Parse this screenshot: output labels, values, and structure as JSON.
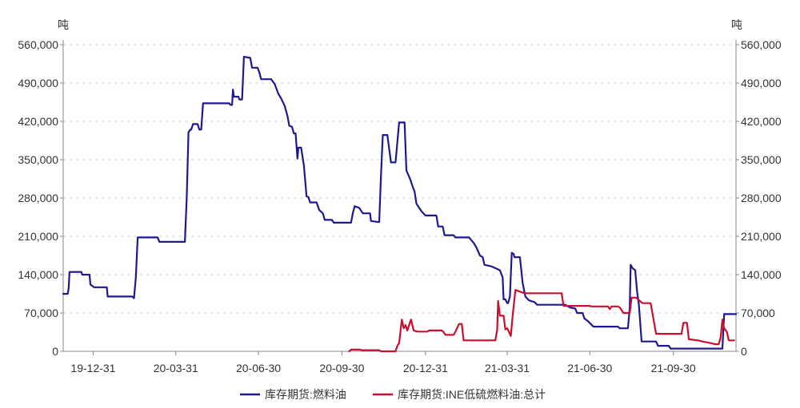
{
  "chart_data": {
    "type": "line",
    "y_unit_left": "吨",
    "y_unit_right": "吨",
    "ylim": [
      0,
      560000
    ],
    "y_ticks": [
      0,
      70000,
      140000,
      210000,
      280000,
      350000,
      420000,
      490000,
      560000
    ],
    "y_tick_labels": [
      "0",
      "70,000",
      "140,000",
      "210,000",
      "280,000",
      "350,000",
      "420,000",
      "490,000",
      "560,000"
    ],
    "xlim": [
      "2019-11-28",
      "2021-12-08"
    ],
    "x_ticks": [
      "2019-12-31",
      "2020-03-31",
      "2020-06-30",
      "2020-09-30",
      "2020-12-31",
      "2021-03-31",
      "2021-06-30",
      "2021-09-30"
    ],
    "x_tick_labels": [
      "19-12-31",
      "20-03-31",
      "20-06-30",
      "20-09-30",
      "20-12-31",
      "21-03-31",
      "21-06-30",
      "21-09-30"
    ],
    "grid": true,
    "legend_position": "bottom",
    "series": [
      {
        "name": "库存期货:燃料油",
        "color": "#1f1a8c",
        "points": [
          [
            "2019-11-28",
            105000
          ],
          [
            "2019-12-03",
            105000
          ],
          [
            "2019-12-04",
            115000
          ],
          [
            "2019-12-05",
            145000
          ],
          [
            "2019-12-18",
            145000
          ],
          [
            "2019-12-19",
            140000
          ],
          [
            "2019-12-27",
            140000
          ],
          [
            "2019-12-28",
            122000
          ],
          [
            "2020-01-01",
            117000
          ],
          [
            "2020-01-15",
            117000
          ],
          [
            "2020-01-16",
            100000
          ],
          [
            "2020-02-12",
            100000
          ],
          [
            "2020-02-14",
            97000
          ],
          [
            "2020-02-16",
            135000
          ],
          [
            "2020-02-18",
            208000
          ],
          [
            "2020-03-11",
            208000
          ],
          [
            "2020-03-13",
            200000
          ],
          [
            "2020-04-10",
            200000
          ],
          [
            "2020-04-12",
            280000
          ],
          [
            "2020-04-14",
            400000
          ],
          [
            "2020-04-16",
            405000
          ],
          [
            "2020-04-17",
            405000
          ],
          [
            "2020-04-19",
            415000
          ],
          [
            "2020-04-24",
            415000
          ],
          [
            "2020-04-26",
            405000
          ],
          [
            "2020-04-28",
            405000
          ],
          [
            "2020-04-30",
            453000
          ],
          [
            "2020-05-29",
            453000
          ],
          [
            "2020-05-30",
            450000
          ],
          [
            "2020-06-01",
            450000
          ],
          [
            "2020-06-02",
            478000
          ],
          [
            "2020-06-03",
            465000
          ],
          [
            "2020-06-08",
            465000
          ],
          [
            "2020-06-09",
            460000
          ],
          [
            "2020-06-12",
            460000
          ],
          [
            "2020-06-14",
            538000
          ],
          [
            "2020-06-21",
            536000
          ],
          [
            "2020-06-23",
            518000
          ],
          [
            "2020-06-29",
            518000
          ],
          [
            "2020-07-01",
            510000
          ],
          [
            "2020-07-03",
            497000
          ],
          [
            "2020-07-14",
            497000
          ],
          [
            "2020-07-18",
            488000
          ],
          [
            "2020-07-22",
            470000
          ],
          [
            "2020-07-25",
            462000
          ],
          [
            "2020-07-29",
            448000
          ],
          [
            "2020-08-01",
            430000
          ],
          [
            "2020-08-03",
            412000
          ],
          [
            "2020-08-06",
            410000
          ],
          [
            "2020-08-08",
            398000
          ],
          [
            "2020-08-10",
            398000
          ],
          [
            "2020-08-12",
            352000
          ],
          [
            "2020-08-13",
            372000
          ],
          [
            "2020-08-16",
            372000
          ],
          [
            "2020-08-19",
            340000
          ],
          [
            "2020-08-22",
            283000
          ],
          [
            "2020-08-24",
            282000
          ],
          [
            "2020-08-26",
            272000
          ],
          [
            "2020-09-02",
            272000
          ],
          [
            "2020-09-05",
            258000
          ],
          [
            "2020-09-09",
            252000
          ],
          [
            "2020-09-11",
            240000
          ],
          [
            "2020-09-19",
            240000
          ],
          [
            "2020-09-21",
            235000
          ],
          [
            "2020-10-10",
            235000
          ],
          [
            "2020-10-12",
            252000
          ],
          [
            "2020-10-14",
            265000
          ],
          [
            "2020-10-19",
            262000
          ],
          [
            "2020-10-23",
            252000
          ],
          [
            "2020-10-31",
            252000
          ],
          [
            "2020-11-01",
            238000
          ],
          [
            "2020-11-10",
            236000
          ],
          [
            "2020-11-12",
            320000
          ],
          [
            "2020-11-14",
            395000
          ],
          [
            "2020-11-19",
            395000
          ],
          [
            "2020-11-23",
            345000
          ],
          [
            "2020-11-28",
            345000
          ],
          [
            "2020-12-02",
            418000
          ],
          [
            "2020-12-08",
            418000
          ],
          [
            "2020-12-10",
            330000
          ],
          [
            "2020-12-14",
            315000
          ],
          [
            "2020-12-17",
            300000
          ],
          [
            "2020-12-19",
            292000
          ],
          [
            "2020-12-21",
            270000
          ],
          [
            "2020-12-24",
            262000
          ],
          [
            "2020-12-27",
            255000
          ],
          [
            "2020-12-31",
            248000
          ],
          [
            "2021-01-12",
            248000
          ],
          [
            "2021-01-14",
            228000
          ],
          [
            "2021-01-19",
            228000
          ],
          [
            "2021-01-21",
            212000
          ],
          [
            "2021-01-31",
            212000
          ],
          [
            "2021-02-02",
            208000
          ],
          [
            "2021-02-17",
            208000
          ],
          [
            "2021-02-22",
            198000
          ],
          [
            "2021-02-25",
            190000
          ],
          [
            "2021-03-01",
            175000
          ],
          [
            "2021-03-04",
            172000
          ],
          [
            "2021-03-06",
            158000
          ],
          [
            "2021-03-14",
            155000
          ],
          [
            "2021-03-23",
            148000
          ],
          [
            "2021-03-26",
            135000
          ],
          [
            "2021-03-27",
            95000
          ],
          [
            "2021-03-29",
            95000
          ],
          [
            "2021-03-31",
            88000
          ],
          [
            "2021-04-01",
            88000
          ],
          [
            "2021-04-03",
            100000
          ],
          [
            "2021-04-05",
            180000
          ],
          [
            "2021-04-07",
            178000
          ],
          [
            "2021-04-08",
            172000
          ],
          [
            "2021-04-14",
            172000
          ],
          [
            "2021-04-17",
            125000
          ],
          [
            "2021-04-20",
            100000
          ],
          [
            "2021-04-24",
            93000
          ],
          [
            "2021-04-30",
            90000
          ],
          [
            "2021-05-03",
            85000
          ],
          [
            "2021-05-31",
            85000
          ],
          [
            "2021-06-03",
            85000
          ],
          [
            "2021-06-08",
            80000
          ],
          [
            "2021-06-14",
            78000
          ],
          [
            "2021-06-16",
            70000
          ],
          [
            "2021-06-22",
            70000
          ],
          [
            "2021-06-24",
            60000
          ],
          [
            "2021-06-28",
            55000
          ],
          [
            "2021-07-01",
            50000
          ],
          [
            "2021-07-04",
            45000
          ],
          [
            "2021-07-31",
            45000
          ],
          [
            "2021-08-02",
            42000
          ],
          [
            "2021-08-11",
            42000
          ],
          [
            "2021-08-13",
            80000
          ],
          [
            "2021-08-14",
            158000
          ],
          [
            "2021-08-16",
            152000
          ],
          [
            "2021-08-19",
            148000
          ],
          [
            "2021-08-21",
            110000
          ],
          [
            "2021-08-23",
            85000
          ],
          [
            "2021-08-26",
            18000
          ],
          [
            "2021-09-11",
            18000
          ],
          [
            "2021-09-13",
            10000
          ],
          [
            "2021-09-25",
            10000
          ],
          [
            "2021-09-27",
            5000
          ],
          [
            "2021-11-23",
            5000
          ],
          [
            "2021-11-25",
            68000
          ],
          [
            "2021-12-08",
            68000
          ]
        ]
      },
      {
        "name": "库存期货:INE低硫燃料油:总计",
        "color": "#c8102e",
        "points": [
          [
            "2020-10-08",
            0
          ],
          [
            "2020-10-10",
            3000
          ],
          [
            "2020-10-20",
            3000
          ],
          [
            "2020-10-22",
            2000
          ],
          [
            "2020-11-10",
            2000
          ],
          [
            "2020-11-12",
            0
          ],
          [
            "2020-11-28",
            0
          ],
          [
            "2020-11-30",
            10000
          ],
          [
            "2020-12-02",
            15000
          ],
          [
            "2020-12-05",
            58000
          ],
          [
            "2020-12-07",
            42000
          ],
          [
            "2020-12-09",
            48000
          ],
          [
            "2020-12-11",
            38000
          ],
          [
            "2020-12-15",
            58000
          ],
          [
            "2020-12-18",
            38000
          ],
          [
            "2020-12-22",
            36000
          ],
          [
            "2021-01-02",
            36000
          ],
          [
            "2021-01-04",
            38000
          ],
          [
            "2021-01-18",
            38000
          ],
          [
            "2021-01-20",
            35000
          ],
          [
            "2021-01-22",
            30000
          ],
          [
            "2021-01-27",
            30000
          ],
          [
            "2021-01-31",
            30000
          ],
          [
            "2021-02-02",
            36000
          ],
          [
            "2021-02-06",
            50000
          ],
          [
            "2021-02-09",
            50000
          ],
          [
            "2021-02-11",
            20000
          ],
          [
            "2021-03-18",
            20000
          ],
          [
            "2021-03-20",
            40000
          ],
          [
            "2021-03-21",
            92000
          ],
          [
            "2021-03-23",
            65000
          ],
          [
            "2021-03-27",
            65000
          ],
          [
            "2021-03-29",
            40000
          ],
          [
            "2021-03-31",
            42000
          ],
          [
            "2021-04-04",
            28000
          ],
          [
            "2021-04-06",
            65000
          ],
          [
            "2021-04-09",
            112000
          ],
          [
            "2021-04-19",
            106000
          ],
          [
            "2021-05-30",
            106000
          ],
          [
            "2021-06-01",
            83000
          ],
          [
            "2021-06-30",
            83000
          ],
          [
            "2021-07-02",
            82000
          ],
          [
            "2021-07-20",
            82000
          ],
          [
            "2021-07-22",
            77000
          ],
          [
            "2021-07-24",
            82000
          ],
          [
            "2021-07-31",
            82000
          ],
          [
            "2021-08-02",
            80000
          ],
          [
            "2021-08-06",
            70000
          ],
          [
            "2021-08-13",
            70000
          ],
          [
            "2021-08-15",
            98000
          ],
          [
            "2021-08-20",
            98000
          ],
          [
            "2021-08-24",
            92000
          ],
          [
            "2021-08-27",
            88000
          ],
          [
            "2021-09-05",
            88000
          ],
          [
            "2021-09-08",
            60000
          ],
          [
            "2021-09-11",
            32000
          ],
          [
            "2021-10-09",
            32000
          ],
          [
            "2021-10-11",
            52000
          ],
          [
            "2021-10-15",
            52000
          ],
          [
            "2021-10-17",
            22000
          ],
          [
            "2021-10-27",
            20000
          ],
          [
            "2021-11-01",
            18000
          ],
          [
            "2021-11-10",
            15000
          ],
          [
            "2021-11-15",
            13000
          ],
          [
            "2021-11-19",
            13000
          ],
          [
            "2021-11-21",
            25000
          ],
          [
            "2021-11-23",
            58000
          ],
          [
            "2021-11-25",
            42000
          ],
          [
            "2021-11-28",
            35000
          ],
          [
            "2021-11-30",
            20000
          ],
          [
            "2021-12-06",
            20000
          ]
        ]
      }
    ]
  }
}
